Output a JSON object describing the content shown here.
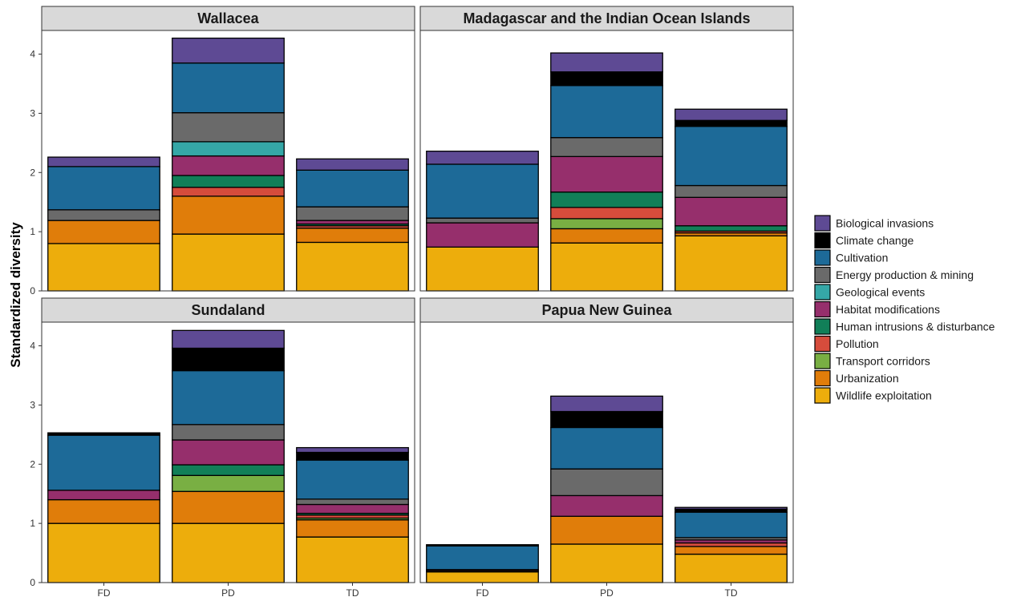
{
  "chart_data": {
    "type": "bar",
    "stacked": true,
    "ylabel": "Standardized diversity",
    "xlabel": "",
    "categories": [
      "FD",
      "PD",
      "TD"
    ],
    "ylim": [
      0,
      4.4
    ],
    "yticks": [
      0,
      1,
      2,
      3,
      4
    ],
    "grid": false,
    "legend_position": "right",
    "legend": [
      {
        "name": "Biological invasions",
        "color": "#5E4A94"
      },
      {
        "name": "Climate change",
        "color": "#000000"
      },
      {
        "name": "Cultivation",
        "color": "#1D6A98"
      },
      {
        "name": "Energy production & mining",
        "color": "#6A6A6A"
      },
      {
        "name": "Geological events",
        "color": "#35A7A7"
      },
      {
        "name": "Habitat modifications",
        "color": "#962F6C"
      },
      {
        "name": "Human intrusions & disturbance",
        "color": "#117F58"
      },
      {
        "name": "Pollution",
        "color": "#D64C3C"
      },
      {
        "name": "Transport corridors",
        "color": "#79AF43"
      },
      {
        "name": "Urbanization",
        "color": "#E07D0A"
      },
      {
        "name": "Wildlife exploitation",
        "color": "#EDAD0C"
      }
    ],
    "panels": [
      {
        "title": "Wallacea",
        "bars": [
          {
            "category": "FD",
            "segments": [
              {
                "threat": "Wildlife exploitation",
                "value": 0.8
              },
              {
                "threat": "Urbanization",
                "value": 0.39
              },
              {
                "threat": "Energy production & mining",
                "value": 0.18
              },
              {
                "threat": "Cultivation",
                "value": 0.73
              },
              {
                "threat": "Biological invasions",
                "value": 0.16
              }
            ]
          },
          {
            "category": "PD",
            "segments": [
              {
                "threat": "Wildlife exploitation",
                "value": 0.96
              },
              {
                "threat": "Urbanization",
                "value": 0.64
              },
              {
                "threat": "Pollution",
                "value": 0.15
              },
              {
                "threat": "Human intrusions & disturbance",
                "value": 0.2
              },
              {
                "threat": "Habitat modifications",
                "value": 0.33
              },
              {
                "threat": "Geological events",
                "value": 0.24
              },
              {
                "threat": "Energy production & mining",
                "value": 0.49
              },
              {
                "threat": "Cultivation",
                "value": 0.84
              },
              {
                "threat": "Biological invasions",
                "value": 0.42
              }
            ]
          },
          {
            "category": "TD",
            "segments": [
              {
                "threat": "Wildlife exploitation",
                "value": 0.82
              },
              {
                "threat": "Urbanization",
                "value": 0.24
              },
              {
                "threat": "Pollution",
                "value": 0.04
              },
              {
                "threat": "Human intrusions & disturbance",
                "value": 0.03
              },
              {
                "threat": "Habitat modifications",
                "value": 0.06
              },
              {
                "threat": "Energy production & mining",
                "value": 0.23
              },
              {
                "threat": "Cultivation",
                "value": 0.62
              },
              {
                "threat": "Biological invasions",
                "value": 0.19
              }
            ]
          }
        ]
      },
      {
        "title": "Madagascar and the Indian Ocean Islands",
        "bars": [
          {
            "category": "FD",
            "segments": [
              {
                "threat": "Wildlife exploitation",
                "value": 0.74
              },
              {
                "threat": "Habitat modifications",
                "value": 0.41
              },
              {
                "threat": "Energy production & mining",
                "value": 0.08
              },
              {
                "threat": "Cultivation",
                "value": 0.91
              },
              {
                "threat": "Biological invasions",
                "value": 0.22
              }
            ]
          },
          {
            "category": "PD",
            "segments": [
              {
                "threat": "Wildlife exploitation",
                "value": 0.81
              },
              {
                "threat": "Urbanization",
                "value": 0.24
              },
              {
                "threat": "Transport corridors",
                "value": 0.17
              },
              {
                "threat": "Pollution",
                "value": 0.19
              },
              {
                "threat": "Human intrusions & disturbance",
                "value": 0.26
              },
              {
                "threat": "Habitat modifications",
                "value": 0.6
              },
              {
                "threat": "Energy production & mining",
                "value": 0.32
              },
              {
                "threat": "Cultivation",
                "value": 0.88
              },
              {
                "threat": "Climate change",
                "value": 0.23
              },
              {
                "threat": "Biological invasions",
                "value": 0.32
              }
            ]
          },
          {
            "category": "TD",
            "segments": [
              {
                "threat": "Wildlife exploitation",
                "value": 0.93
              },
              {
                "threat": "Urbanization",
                "value": 0.05
              },
              {
                "threat": "Pollution",
                "value": 0.03
              },
              {
                "threat": "Human intrusions & disturbance",
                "value": 0.09
              },
              {
                "threat": "Habitat modifications",
                "value": 0.48
              },
              {
                "threat": "Energy production & mining",
                "value": 0.2
              },
              {
                "threat": "Cultivation",
                "value": 1.0
              },
              {
                "threat": "Climate change",
                "value": 0.1
              },
              {
                "threat": "Biological invasions",
                "value": 0.19
              }
            ]
          }
        ]
      },
      {
        "title": "Sundaland",
        "bars": [
          {
            "category": "FD",
            "segments": [
              {
                "threat": "Wildlife exploitation",
                "value": 1.0
              },
              {
                "threat": "Urbanization",
                "value": 0.4
              },
              {
                "threat": "Habitat modifications",
                "value": 0.16
              },
              {
                "threat": "Cultivation",
                "value": 0.93
              },
              {
                "threat": "Climate change",
                "value": 0.04
              }
            ]
          },
          {
            "category": "PD",
            "segments": [
              {
                "threat": "Wildlife exploitation",
                "value": 1.0
              },
              {
                "threat": "Urbanization",
                "value": 0.54
              },
              {
                "threat": "Transport corridors",
                "value": 0.27
              },
              {
                "threat": "Human intrusions & disturbance",
                "value": 0.18
              },
              {
                "threat": "Habitat modifications",
                "value": 0.42
              },
              {
                "threat": "Energy production & mining",
                "value": 0.26
              },
              {
                "threat": "Cultivation",
                "value": 0.91
              },
              {
                "threat": "Climate change",
                "value": 0.38
              },
              {
                "threat": "Biological invasions",
                "value": 0.3
              }
            ]
          },
          {
            "category": "TD",
            "segments": [
              {
                "threat": "Wildlife exploitation",
                "value": 0.77
              },
              {
                "threat": "Urbanization",
                "value": 0.29
              },
              {
                "threat": "Pollution",
                "value": 0.05
              },
              {
                "threat": "Transport corridors",
                "value": 0.03
              },
              {
                "threat": "Human intrusions & disturbance",
                "value": 0.03
              },
              {
                "threat": "Habitat modifications",
                "value": 0.15
              },
              {
                "threat": "Energy production & mining",
                "value": 0.09
              },
              {
                "threat": "Cultivation",
                "value": 0.66
              },
              {
                "threat": "Climate change",
                "value": 0.13
              },
              {
                "threat": "Biological invasions",
                "value": 0.08
              }
            ]
          }
        ]
      },
      {
        "title": "Papua New Guinea",
        "bars": [
          {
            "category": "FD",
            "segments": [
              {
                "threat": "Wildlife exploitation",
                "value": 0.18
              },
              {
                "threat": "Urbanization",
                "value": 0.02
              },
              {
                "threat": "Habitat modifications",
                "value": 0.02
              },
              {
                "threat": "Climate change",
                "value": 0.02
              },
              {
                "threat": "Cultivation",
                "value": 0.4
              }
            ]
          },
          {
            "category": "PD",
            "segments": [
              {
                "threat": "Wildlife exploitation",
                "value": 0.65
              },
              {
                "threat": "Urbanization",
                "value": 0.47
              },
              {
                "threat": "Habitat modifications",
                "value": 0.35
              },
              {
                "threat": "Energy production & mining",
                "value": 0.45
              },
              {
                "threat": "Cultivation",
                "value": 0.7
              },
              {
                "threat": "Climate change",
                "value": 0.27
              },
              {
                "threat": "Biological invasions",
                "value": 0.26
              }
            ]
          },
          {
            "category": "TD",
            "segments": [
              {
                "threat": "Wildlife exploitation",
                "value": 0.48
              },
              {
                "threat": "Urbanization",
                "value": 0.13
              },
              {
                "threat": "Pollution",
                "value": 0.06
              },
              {
                "threat": "Habitat modifications",
                "value": 0.05
              },
              {
                "threat": "Energy production & mining",
                "value": 0.04
              },
              {
                "threat": "Cultivation",
                "value": 0.43
              },
              {
                "threat": "Climate change",
                "value": 0.05
              },
              {
                "threat": "Biological invasions",
                "value": 0.03
              }
            ]
          }
        ]
      }
    ]
  }
}
